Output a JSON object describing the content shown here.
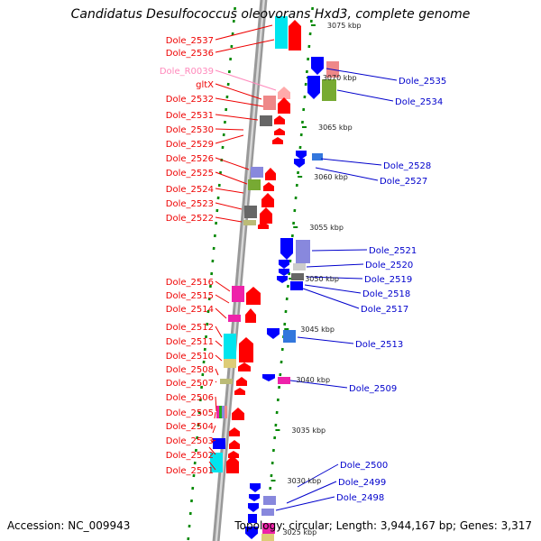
{
  "title": "Candidatus Desulfococcus oleovorans Hxd3, complete genome",
  "accession": "Accession: NC_009943",
  "topology": "Topology: circular; Length: 3,944,167 bp; Genes: 3,317",
  "colors": {
    "forward": "#ff0000",
    "reverse": "#0000ff",
    "rna": "#ff88bb",
    "backbone": "#999999",
    "ticks": "#008800"
  },
  "kbp_marks": [
    "3075 kbp",
    "3070 kbp",
    "3065 kbp",
    "3060 kbp",
    "3055 kbp",
    "3050 kbp",
    "3045 kbp",
    "3040 kbp",
    "3035 kbp",
    "3030 kbp",
    "3025 kbp"
  ],
  "left_genes": [
    {
      "label": "Dole_2537",
      "kind": "cds"
    },
    {
      "label": "Dole_2536",
      "kind": "cds"
    },
    {
      "label": "Dole_R0039",
      "kind": "rna"
    },
    {
      "label": "gltX",
      "kind": "cds"
    },
    {
      "label": "Dole_2532",
      "kind": "cds"
    },
    {
      "label": "Dole_2531",
      "kind": "cds"
    },
    {
      "label": "Dole_2530",
      "kind": "cds"
    },
    {
      "label": "Dole_2529",
      "kind": "cds"
    },
    {
      "label": "Dole_2526",
      "kind": "cds"
    },
    {
      "label": "Dole_2525",
      "kind": "cds"
    },
    {
      "label": "Dole_2524",
      "kind": "cds"
    },
    {
      "label": "Dole_2523",
      "kind": "cds"
    },
    {
      "label": "Dole_2522",
      "kind": "cds"
    },
    {
      "label": "Dole_2516",
      "kind": "cds"
    },
    {
      "label": "Dole_2515",
      "kind": "cds"
    },
    {
      "label": "Dole_2514",
      "kind": "cds"
    },
    {
      "label": "Dole_2512",
      "kind": "cds"
    },
    {
      "label": "Dole_2511",
      "kind": "cds"
    },
    {
      "label": "Dole_2510",
      "kind": "cds"
    },
    {
      "label": "Dole_2508",
      "kind": "cds"
    },
    {
      "label": "Dole_2507",
      "kind": "cds"
    },
    {
      "label": "Dole_2506",
      "kind": "cds"
    },
    {
      "label": "Dole_2505",
      "kind": "cds"
    },
    {
      "label": "Dole_2504",
      "kind": "cds"
    },
    {
      "label": "Dole_2503",
      "kind": "cds"
    },
    {
      "label": "Dole_2502",
      "kind": "cds"
    },
    {
      "label": "Dole_2501",
      "kind": "cds"
    }
  ],
  "right_genes": [
    {
      "label": "Dole_2535"
    },
    {
      "label": "Dole_2534"
    },
    {
      "label": "Dole_2528"
    },
    {
      "label": "Dole_2527"
    },
    {
      "label": "Dole_2521"
    },
    {
      "label": "Dole_2520"
    },
    {
      "label": "Dole_2519"
    },
    {
      "label": "Dole_2518"
    },
    {
      "label": "Dole_2517"
    },
    {
      "label": "Dole_2513"
    },
    {
      "label": "Dole_2509"
    },
    {
      "label": "Dole_2500"
    },
    {
      "label": "Dole_2499"
    },
    {
      "label": "Dole_2498"
    }
  ]
}
